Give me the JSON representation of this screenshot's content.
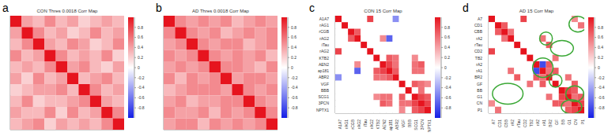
{
  "chart_data": [
    {
      "type": "heatmap",
      "panel": "a",
      "title": "CON Thres 0.0018 Corr Map",
      "tick_labels": false,
      "values": [
        [
          1,
          0.4,
          0.3,
          0.5,
          0.3,
          0.4,
          0.2,
          0.3,
          0.4,
          0.3
        ],
        [
          0.4,
          1,
          0.5,
          0.3,
          0.4,
          0.2,
          0.3,
          0.5,
          0.3,
          0.4
        ],
        [
          0.3,
          0.5,
          1,
          0.4,
          0.3,
          0.5,
          0.4,
          0.2,
          0.3,
          0.5
        ],
        [
          0.5,
          0.3,
          0.4,
          1,
          0.5,
          0.3,
          0.4,
          0.3,
          0.5,
          0.2
        ],
        [
          0.3,
          0.4,
          0.3,
          0.5,
          1,
          0.4,
          0.5,
          0.3,
          0.2,
          0.4
        ],
        [
          0.4,
          0.2,
          0.5,
          0.3,
          0.4,
          1,
          0.3,
          0.4,
          0.5,
          0.3
        ],
        [
          0.2,
          0.3,
          0.4,
          0.4,
          0.5,
          0.3,
          1,
          0.5,
          0.3,
          0.4
        ],
        [
          0.3,
          0.5,
          0.2,
          0.3,
          0.3,
          0.4,
          0.5,
          1,
          0.4,
          0.3
        ],
        [
          0.4,
          0.3,
          0.3,
          0.5,
          0.2,
          0.5,
          0.3,
          0.4,
          1,
          0.5
        ],
        [
          0.3,
          0.4,
          0.5,
          0.2,
          0.4,
          0.3,
          0.4,
          0.3,
          0.5,
          1
        ]
      ],
      "colorbar": {
        "range": [
          -1,
          1
        ],
        "ticks": [
          0.8,
          0.6,
          0.4,
          0.2,
          0,
          -0.2,
          -0.4,
          -0.6,
          -0.8
        ]
      }
    },
    {
      "type": "heatmap",
      "panel": "b",
      "title": "AD Thres 0.0018 Corr Map",
      "tick_labels": false,
      "values": [
        [
          1,
          0.5,
          0.4,
          0.5,
          0.4,
          0.5,
          0.3,
          0.4,
          0.5,
          0.4
        ],
        [
          0.5,
          1,
          0.5,
          0.4,
          0.5,
          0.3,
          0.4,
          0.5,
          0.4,
          0.5
        ],
        [
          0.4,
          0.5,
          1,
          0.5,
          0.4,
          0.5,
          0.5,
          0.3,
          0.4,
          0.5
        ],
        [
          0.5,
          0.4,
          0.5,
          1,
          0.5,
          0.4,
          0.5,
          0.4,
          0.5,
          0.3
        ],
        [
          0.4,
          0.5,
          0.4,
          0.5,
          1,
          0.5,
          0.5,
          0.4,
          0.3,
          0.5
        ],
        [
          0.5,
          0.3,
          0.5,
          0.4,
          0.5,
          1,
          0.4,
          0.5,
          0.5,
          0.4
        ],
        [
          0.3,
          0.4,
          0.5,
          0.5,
          0.5,
          0.4,
          1,
          0.5,
          0.4,
          0.5
        ],
        [
          0.4,
          0.5,
          0.3,
          0.4,
          0.4,
          0.5,
          0.5,
          1,
          0.5,
          0.4
        ],
        [
          0.5,
          0.4,
          0.4,
          0.5,
          0.3,
          0.5,
          0.4,
          0.5,
          1,
          0.5
        ],
        [
          0.4,
          0.5,
          0.5,
          0.3,
          0.5,
          0.4,
          0.5,
          0.4,
          0.5,
          1
        ]
      ],
      "colorbar": {
        "range": [
          -1,
          1
        ],
        "ticks": [
          0.8,
          0.6,
          0.4,
          0.2,
          0,
          -0.2,
          -0.4,
          -0.6,
          -0.8
        ]
      }
    },
    {
      "type": "heatmap",
      "panel": "c",
      "title": "CON 15 Corr Map",
      "labels": [
        "A1A7",
        "rAG1",
        "rCGB",
        "rAG2",
        "iTau",
        "rAG2",
        "KTB2",
        "AEN2",
        "ap181",
        "ABR2",
        "VGF",
        "BBB",
        "SCG1",
        "3PCN",
        "NPTX1"
      ],
      "values": [
        [
          1,
          0,
          0,
          0,
          0,
          0.8,
          0,
          0,
          0,
          -0.5,
          0,
          0,
          0,
          0,
          0
        ],
        [
          0,
          1,
          0,
          0,
          0,
          0,
          0,
          0,
          0,
          0,
          0,
          0,
          0,
          0,
          0
        ],
        [
          0,
          0,
          1,
          0.7,
          0,
          0,
          0,
          0,
          0,
          0,
          0,
          0,
          0,
          0,
          0
        ],
        [
          0,
          0,
          0.7,
          1,
          0,
          0,
          0,
          0.5,
          -0.7,
          0,
          0,
          0,
          0,
          0,
          0
        ],
        [
          0,
          0,
          0,
          0,
          1,
          0,
          0,
          0,
          0,
          0,
          0,
          0,
          0,
          0,
          0
        ],
        [
          0.8,
          0,
          0,
          0,
          0,
          1,
          0,
          0,
          0,
          0,
          0,
          0,
          0,
          0,
          0
        ],
        [
          0,
          0,
          0,
          0,
          0,
          0,
          1,
          0,
          0.7,
          0.6,
          0,
          0,
          0.5,
          0,
          0
        ],
        [
          0,
          0,
          0,
          0.5,
          0,
          0,
          0,
          1,
          0.8,
          0.6,
          0,
          0,
          0.6,
          0.7,
          0
        ],
        [
          0,
          0,
          0,
          -0.7,
          0,
          0,
          0.7,
          0.8,
          1,
          0.7,
          0,
          0,
          0.6,
          0.6,
          0
        ],
        [
          -0.5,
          0,
          0,
          0,
          0,
          0,
          0.6,
          0.6,
          0.7,
          1,
          0,
          0,
          0,
          0,
          0
        ],
        [
          0,
          0,
          0,
          0,
          0,
          0,
          0,
          0,
          0,
          0,
          1,
          0,
          0.7,
          0.6,
          0.5
        ],
        [
          0,
          0,
          0,
          0,
          0,
          0,
          0,
          0,
          0,
          0,
          0,
          1,
          0,
          0.6,
          0
        ],
        [
          0,
          0,
          0,
          0,
          0,
          0,
          0.5,
          0.6,
          0.6,
          0,
          0.7,
          0,
          1,
          0.8,
          0.7
        ],
        [
          0,
          0,
          0,
          0,
          0,
          0,
          0,
          0.7,
          0.6,
          0,
          0.6,
          0.6,
          0.8,
          1,
          0.8
        ],
        [
          0,
          0,
          0,
          0,
          0,
          0,
          0,
          0,
          0,
          0,
          0.5,
          0,
          0.7,
          0.8,
          1
        ]
      ],
      "colorbar": {
        "range": [
          -1,
          1
        ],
        "ticks": [
          0.8,
          0.6,
          0.4,
          0.2,
          0,
          -0.2,
          -0.4,
          -0.6,
          -0.8
        ]
      }
    },
    {
      "type": "heatmap",
      "panel": "d",
      "title": "AD 15 Corr Map",
      "labels": [
        "A7",
        "CD1",
        "CBB",
        "rA2",
        "rTau",
        "CD2",
        "TB2",
        "rA2",
        "rA1",
        "BR2",
        "GF",
        "BB",
        "G1",
        "CN",
        "P1"
      ],
      "values": [
        [
          1,
          0,
          0,
          0,
          0,
          0.8,
          0,
          0,
          0,
          0,
          0,
          0,
          0,
          0.5,
          0
        ],
        [
          0,
          1,
          0.7,
          0,
          0,
          0,
          0,
          0,
          0,
          0,
          0,
          0,
          0,
          0,
          0.6
        ],
        [
          0,
          0.7,
          1,
          0.6,
          0,
          0,
          0,
          0,
          0,
          0,
          0,
          0,
          0,
          0,
          0
        ],
        [
          0,
          0,
          0.6,
          1,
          0,
          0,
          0,
          0,
          0.6,
          0,
          0,
          0,
          0,
          0,
          0
        ],
        [
          0,
          0,
          0,
          0,
          1,
          0,
          0,
          0,
          0,
          0.7,
          0,
          0,
          0,
          0,
          0
        ],
        [
          0.8,
          0,
          0,
          0,
          0,
          1,
          0,
          0,
          0,
          0,
          0,
          0,
          0,
          0,
          0
        ],
        [
          0,
          0,
          0,
          0,
          0,
          0,
          1,
          0,
          0,
          0,
          0.6,
          0,
          0,
          0,
          0
        ],
        [
          0,
          0,
          0,
          0,
          0,
          0,
          0,
          1,
          -0.8,
          0.7,
          0,
          0,
          0,
          0,
          0
        ],
        [
          0,
          0,
          0,
          0.6,
          0,
          0,
          0,
          -0.8,
          1,
          0.6,
          0.7,
          0,
          0,
          0,
          0
        ],
        [
          0,
          0,
          0,
          0,
          0.7,
          0,
          0,
          0.7,
          0.6,
          1,
          0,
          0,
          0.6,
          0,
          0
        ],
        [
          0,
          0,
          0,
          0,
          0,
          0,
          0.6,
          0,
          0.7,
          0,
          1,
          0,
          0,
          0.7,
          0
        ],
        [
          0,
          0,
          0,
          0,
          0,
          0,
          0,
          0,
          0,
          0,
          0,
          1,
          0.8,
          0.7,
          0
        ],
        [
          0,
          0,
          0,
          0,
          0,
          0,
          0,
          0,
          0,
          0.6,
          0,
          0.8,
          1,
          0.6,
          0.7
        ],
        [
          0.5,
          0,
          0,
          0,
          0,
          0,
          0,
          0,
          0,
          0,
          0.7,
          0.7,
          0.6,
          1,
          0.8
        ],
        [
          0,
          0.6,
          0,
          0,
          0,
          0,
          0,
          0,
          0,
          0,
          0,
          0,
          0.7,
          0.8,
          1
        ]
      ],
      "colorbar": {
        "range": [
          -1,
          1
        ],
        "ticks": [
          0.8,
          0.6,
          0.4,
          0.2,
          0,
          -0.2,
          -0.4,
          -0.6,
          -0.8
        ]
      }
    }
  ]
}
